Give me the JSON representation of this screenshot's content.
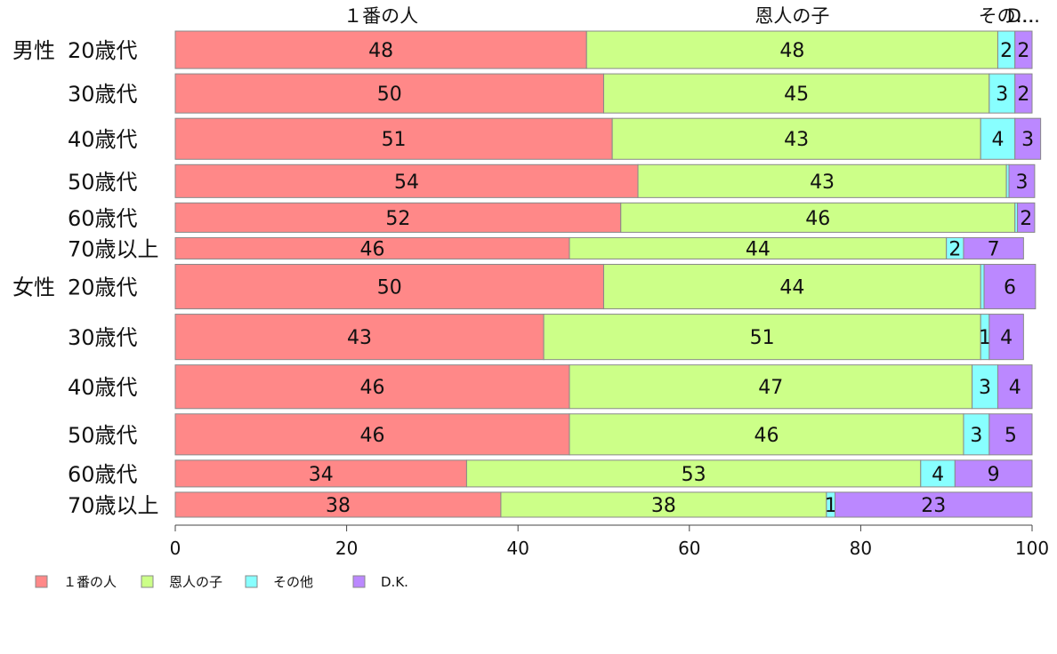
{
  "chart_data": {
    "type": "bar",
    "orientation": "horizontal",
    "stacked": true,
    "xlim": [
      0,
      100
    ],
    "x_ticks": [
      "0",
      "20",
      "40",
      "60",
      "80",
      "100"
    ],
    "grid": false,
    "legend_position": "bottom-left",
    "series": [
      {
        "name": "１番の人",
        "color": "#ff8888",
        "top_label": "１番の人",
        "values": [
          48,
          50,
          51,
          54,
          52,
          46,
          50,
          43,
          46,
          46,
          34,
          38
        ]
      },
      {
        "name": "恩人の子",
        "color": "#ccff88",
        "top_label": "恩人の子",
        "values": [
          48,
          45,
          43,
          43,
          46,
          44,
          44,
          51,
          47,
          46,
          53,
          38
        ]
      },
      {
        "name": "その他",
        "color": "#88ffff",
        "top_label": "その…",
        "values": [
          2,
          3,
          4,
          0.3,
          0.3,
          2,
          0.4,
          1,
          3,
          3,
          4,
          1
        ]
      },
      {
        "name": "D.K.",
        "color": "#bb88ff",
        "top_label": "D…",
        "values": [
          2,
          2,
          3,
          3,
          2,
          7,
          6,
          4,
          4,
          5,
          9,
          23
        ]
      }
    ],
    "data_labels": [
      [
        "48",
        "48",
        "2",
        "2"
      ],
      [
        "50",
        "45",
        "3",
        "2"
      ],
      [
        "51",
        "43",
        "4",
        "3"
      ],
      [
        "54",
        "43",
        "",
        "3"
      ],
      [
        "52",
        "46",
        "",
        "2"
      ],
      [
        "46",
        "44",
        "2",
        "7"
      ],
      [
        "50",
        "44",
        "",
        "6"
      ],
      [
        "43",
        "51",
        "1",
        "4"
      ],
      [
        "46",
        "47",
        "3",
        "4"
      ],
      [
        "46",
        "46",
        "3",
        "5"
      ],
      [
        "34",
        "53",
        "4",
        "9"
      ],
      [
        "38",
        "38",
        "1",
        "23"
      ]
    ],
    "rows": [
      {
        "group": "男性",
        "label": "20歳代"
      },
      {
        "group": "",
        "label": "30歳代"
      },
      {
        "group": "",
        "label": "40歳代"
      },
      {
        "group": "",
        "label": "50歳代"
      },
      {
        "group": "",
        "label": "60歳代"
      },
      {
        "group": "",
        "label": "70歳以上"
      },
      {
        "group": "女性",
        "label": "20歳代"
      },
      {
        "group": "",
        "label": "30歳代"
      },
      {
        "group": "",
        "label": "40歳代"
      },
      {
        "group": "",
        "label": "50歳代"
      },
      {
        "group": "",
        "label": "60歳代"
      },
      {
        "group": "",
        "label": "70歳以上"
      }
    ],
    "row_weights": [
      42,
      44,
      46,
      37,
      33,
      24,
      50,
      51,
      49,
      46,
      30,
      28
    ]
  }
}
